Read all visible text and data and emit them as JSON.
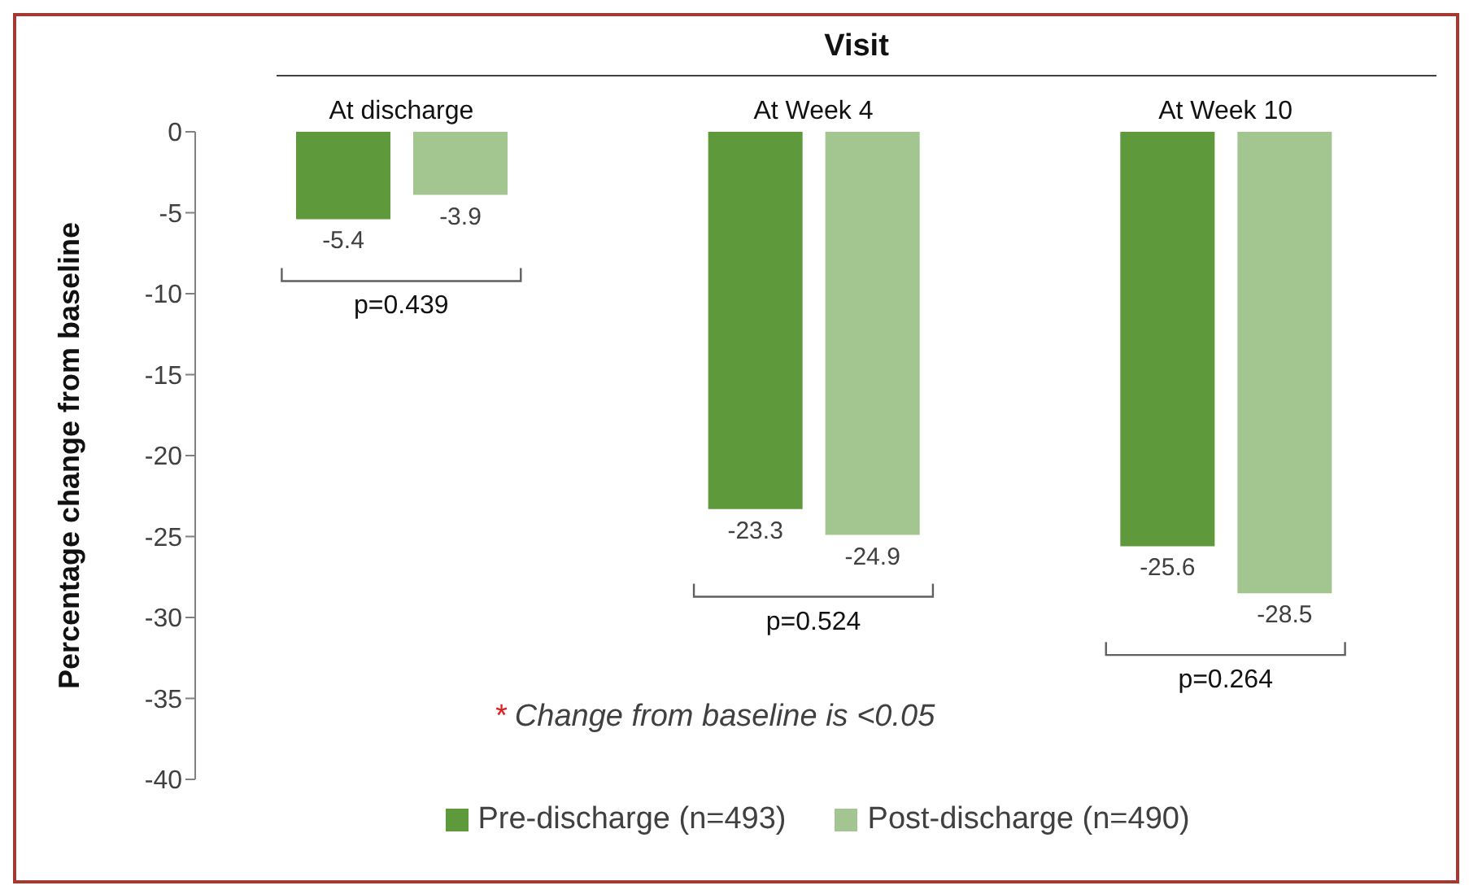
{
  "chart_data": {
    "type": "bar",
    "title": "Visit",
    "ylabel": "Percentage change from baseline",
    "categories": [
      "At discharge",
      "At Week 4",
      "At Week 10"
    ],
    "series": [
      {
        "name": "Pre-discharge (n=493)",
        "color": "#5e9a3c",
        "values": [
          -5.4,
          -23.3,
          -25.6
        ]
      },
      {
        "name": "Post-discharge (n=490)",
        "color": "#a3c690",
        "values": [
          -3.9,
          -24.9,
          -28.5
        ]
      }
    ],
    "ylim": [
      -40,
      0
    ],
    "yticks": [
      0,
      -5,
      -10,
      -15,
      -20,
      -25,
      -30,
      -35,
      -40
    ],
    "grid": false,
    "legend": "bottom",
    "data_labels": true,
    "annotations": [
      "p=0.439",
      "p=0.524",
      "p=0.264",
      "* Change from baseline is <0.05"
    ]
  }
}
